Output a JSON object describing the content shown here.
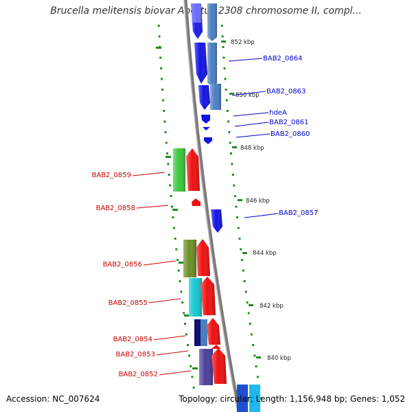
{
  "title": "Brucella melitensis biovar Abortus 2308 chromosome II, compl...",
  "footer": {
    "accession": "Accession: NC_007624",
    "topology": "Topology: circular; Length: 1,156,948 bp; Genes: 1,052"
  },
  "colors": {
    "forward_strand_label": "#0000cc",
    "reverse_strand_label": "#cc0000",
    "backbone": "#7a7a7a",
    "tick": "#228b22"
  },
  "scale_ticks": [
    "852 kbp",
    "850 kbp",
    "848 kbp",
    "846 kbp",
    "844 kbp",
    "842 kbp",
    "840 kbp"
  ],
  "forward_genes": [
    "BAB2_0864",
    "BAB2_0863",
    "hdeA",
    "BAB2_0861",
    "BAB2_0860",
    "BAB2_0857"
  ],
  "reverse_genes": [
    "BAB2_0859",
    "BAB2_0858",
    "BAB2_0856",
    "BAB2_0855",
    "BAB2_0854",
    "BAB2_0853",
    "BAB2_0852"
  ]
}
